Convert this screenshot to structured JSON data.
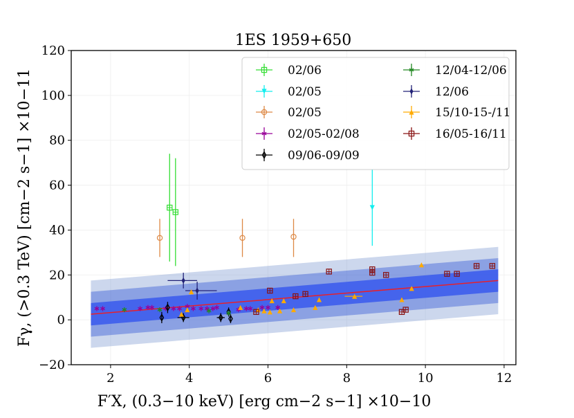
{
  "chart_data": {
    "type": "scatter",
    "title": "1ES 1959+650",
    "xlabel": "F′X, (0.3−10 keV) [erg cm−2 s−1] ×10−10",
    "ylabel": "Fγ, (>0.3 TeV) [cm−2 s−1] ×10−11",
    "xlim": [
      1.0,
      12.3
    ],
    "ylim": [
      -20,
      120
    ],
    "xticks": [
      "2",
      "4",
      "6",
      "8",
      "10",
      "12"
    ],
    "yticks": [
      "−20",
      "0",
      "20",
      "40",
      "60",
      "80",
      "100",
      "120"
    ],
    "legend_position": "top-right",
    "fit": {
      "x": [
        1.5,
        11.85
      ],
      "y": [
        2.5,
        17.5
      ],
      "color": "#e8202a",
      "bands": [
        {
          "halfwidth": 5,
          "color": "#3355ee",
          "opacity": 0.8
        },
        {
          "halfwidth": 10,
          "color": "#3b5fd6",
          "opacity": 0.45
        },
        {
          "halfwidth": 15,
          "color": "#6e8ccc",
          "opacity": 0.35
        }
      ]
    },
    "series": [
      {
        "name": "02/06",
        "color": "#33dd33",
        "marker": "square-plus",
        "points": [
          {
            "x": 3.5,
            "y": 50,
            "ylo": 26,
            "yhi": 74
          },
          {
            "x": 3.65,
            "y": 48,
            "ylo": 24,
            "yhi": 72
          }
        ]
      },
      {
        "name": "02/05",
        "color": "#11eeee",
        "marker": "triangle-down",
        "points": [
          {
            "x": 8.65,
            "y": 50,
            "ylo": 33,
            "yhi": 67
          }
        ]
      },
      {
        "name": "02/05",
        "color": "#dd8844",
        "marker": "circle-hollow",
        "points": [
          {
            "x": 3.25,
            "y": 36.5,
            "ylo": 28,
            "yhi": 45
          },
          {
            "x": 5.35,
            "y": 36.5,
            "ylo": 28,
            "yhi": 45
          },
          {
            "x": 6.65,
            "y": 37,
            "ylo": 28,
            "yhi": 45
          }
        ]
      },
      {
        "name": "02/05-02/08",
        "color": "#990099",
        "marker": "star",
        "points": [
          {
            "x": 1.65,
            "y": 5
          },
          {
            "x": 1.8,
            "y": 5
          },
          {
            "x": 2.75,
            "y": 5
          },
          {
            "x": 2.95,
            "y": 5.5
          },
          {
            "x": 3.05,
            "y": 5.5
          },
          {
            "x": 3.4,
            "y": 5
          },
          {
            "x": 3.6,
            "y": 5
          },
          {
            "x": 3.75,
            "y": 5
          },
          {
            "x": 3.95,
            "y": 6
          },
          {
            "x": 4.1,
            "y": 5
          },
          {
            "x": 4.3,
            "y": 5
          },
          {
            "x": 4.45,
            "y": 5
          },
          {
            "x": 4.6,
            "y": 5
          },
          {
            "x": 4.7,
            "y": 5.5
          },
          {
            "x": 5.25,
            "y": 4.5
          },
          {
            "x": 5.45,
            "y": 5
          },
          {
            "x": 5.55,
            "y": 5
          },
          {
            "x": 5.85,
            "y": 5.5
          },
          {
            "x": 6.0,
            "y": 5.5
          },
          {
            "x": 6.25,
            "y": 5.5
          }
        ]
      },
      {
        "name": "09/06-09/09",
        "color": "#000000",
        "marker": "diamond-hollow",
        "points": [
          {
            "x": 3.3,
            "y": 1,
            "ylo": -1.5,
            "yhi": 3.5
          },
          {
            "x": 3.45,
            "y": 5.5,
            "ylo": 3,
            "yhi": 8
          },
          {
            "x": 3.85,
            "y": 1,
            "ylo": -1,
            "yhi": 3,
            "xlo": 3.7,
            "xhi": 4.0
          },
          {
            "x": 4.8,
            "y": 1,
            "ylo": -1,
            "yhi": 3,
            "xlo": 4.7,
            "xhi": 4.9
          },
          {
            "x": 5.05,
            "y": 0.5,
            "ylo": -1.5,
            "yhi": 2.5
          },
          {
            "x": 5.0,
            "y": 3.5,
            "ylo": 1.5,
            "yhi": 5.5
          }
        ]
      },
      {
        "name": "12/04-12/06",
        "color": "#228822",
        "marker": "star",
        "points": [
          {
            "x": 2.35,
            "y": 4.5
          },
          {
            "x": 3.25,
            "y": 4.5
          },
          {
            "x": 4.5,
            "y": 4
          },
          {
            "x": 5.0,
            "y": 3
          }
        ]
      },
      {
        "name": "12/06",
        "color": "#222277",
        "marker": "diamond",
        "points": [
          {
            "x": 3.85,
            "y": 17.5,
            "ylo": 14,
            "yhi": 21,
            "xlo": 3.45,
            "xhi": 4.2
          },
          {
            "x": 4.2,
            "y": 13,
            "ylo": 9,
            "yhi": 17,
            "xlo": 3.9,
            "xhi": 4.7
          }
        ]
      },
      {
        "name": "15/10-15-/11",
        "color": "#ffaa00",
        "marker": "triangle-up",
        "points": [
          {
            "x": 3.8,
            "y": 2.5
          },
          {
            "x": 3.95,
            "y": 4.5
          },
          {
            "x": 4.05,
            "y": 12.5
          },
          {
            "x": 5.3,
            "y": 5.5
          },
          {
            "x": 5.75,
            "y": 4.5
          },
          {
            "x": 5.9,
            "y": 4
          },
          {
            "x": 6.05,
            "y": 3.5
          },
          {
            "x": 6.1,
            "y": 8.5
          },
          {
            "x": 6.3,
            "y": 4
          },
          {
            "x": 6.4,
            "y": 8.5
          },
          {
            "x": 6.65,
            "y": 4.5
          },
          {
            "x": 7.2,
            "y": 5.5
          },
          {
            "x": 7.3,
            "y": 9
          },
          {
            "x": 8.2,
            "y": 10.5,
            "xlo": 7.95,
            "xhi": 8.4
          },
          {
            "x": 9.4,
            "y": 9
          },
          {
            "x": 9.65,
            "y": 14
          },
          {
            "x": 9.9,
            "y": 24.5
          }
        ]
      },
      {
        "name": "16/05-16/11",
        "color": "#881111",
        "marker": "square-plus",
        "points": [
          {
            "x": 5.7,
            "y": 3.5
          },
          {
            "x": 6.05,
            "y": 13
          },
          {
            "x": 6.7,
            "y": 10.5
          },
          {
            "x": 6.95,
            "y": 11.5
          },
          {
            "x": 7.55,
            "y": 21.5
          },
          {
            "x": 8.65,
            "y": 22.5
          },
          {
            "x": 8.65,
            "y": 21
          },
          {
            "x": 9.0,
            "y": 20
          },
          {
            "x": 9.4,
            "y": 3.5
          },
          {
            "x": 9.5,
            "y": 4.5
          },
          {
            "x": 10.55,
            "y": 20.5
          },
          {
            "x": 10.8,
            "y": 20.5
          },
          {
            "x": 11.3,
            "y": 24
          },
          {
            "x": 11.7,
            "y": 24
          }
        ]
      }
    ]
  }
}
